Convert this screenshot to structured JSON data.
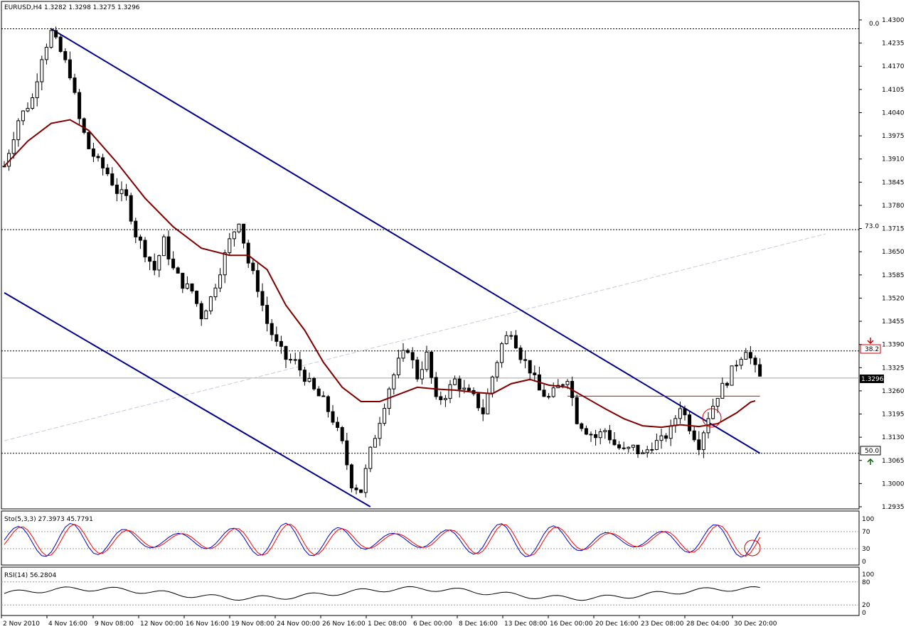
{
  "symbol_header": "EURUSD,H4  1.3282 1.3298 1.3275 1.3296",
  "stochastic_header": "Sto(5,3,3) 27.3973 45.7791",
  "rsi_header": "RSI(14) 56.2804",
  "last_price_label": "1.3296",
  "fib_labels": {
    "fib0": "0.0",
    "fib382": "38.2",
    "fib50": "50.0",
    "fib73": "73.0"
  },
  "colors": {
    "candles": "#000000",
    "ma": "#800000",
    "channel": "#00008b",
    "horizontal_red": "#e00000",
    "stoch_main": "#0000cc",
    "stoch_signal": "#ff0000",
    "rsi": "#000000",
    "background": "#ffffff"
  },
  "icons": {
    "down_arrow": "red-down-arrow-icon",
    "up_arrow": "green-up-arrow-icon"
  },
  "chart_data": [
    {
      "type": "candlestick",
      "title": "EURUSD,H4",
      "ohlc_last": {
        "open": 1.3282,
        "high": 1.3298,
        "low": 1.3275,
        "close": 1.3296
      },
      "ylim": [
        1.2935,
        1.43
      ],
      "y_ticks": [
        "1.4300",
        "1.4235",
        "1.4170",
        "1.4105",
        "1.4040",
        "1.3975",
        "1.3910",
        "1.3845",
        "1.3780",
        "1.3715",
        "1.3650",
        "1.3585",
        "1.3520",
        "1.3455",
        "1.3390",
        "1.3325",
        "1.3260",
        "1.3195",
        "1.3130",
        "1.3065",
        "1.3000",
        "1.2935"
      ],
      "x_ticks": [
        "2 Nov 2010",
        "4 Nov 16:00",
        "9 Nov 08:00",
        "12 Nov 00:00",
        "16 Nov 16:00",
        "19 Nov 08:00",
        "24 Nov 00:00",
        "26 Nov 16:00",
        "1 Dec 08:00",
        "6 Dec 00:00",
        "8 Dec 16:00",
        "13 Dec 08:00",
        "16 Dec 00:00",
        "20 Dec 16:00",
        "23 Dec 08:00",
        "28 Dec 04:00",
        "30 Dec 20:00"
      ],
      "approx_close_path": [
        [
          0,
          1.389
        ],
        [
          3,
          1.402
        ],
        [
          6,
          1.408
        ],
        [
          8,
          1.42
        ],
        [
          10,
          1.4265
        ],
        [
          12,
          1.421
        ],
        [
          14,
          1.415
        ],
        [
          16,
          1.402
        ],
        [
          18,
          1.394
        ],
        [
          20,
          1.39
        ],
        [
          22,
          1.387
        ],
        [
          24,
          1.382
        ],
        [
          26,
          1.38
        ],
        [
          28,
          1.37
        ],
        [
          30,
          1.365
        ],
        [
          32,
          1.36
        ],
        [
          34,
          1.368
        ],
        [
          36,
          1.36
        ],
        [
          38,
          1.356
        ],
        [
          40,
          1.354
        ],
        [
          42,
          1.347
        ],
        [
          44,
          1.352
        ],
        [
          46,
          1.36
        ],
        [
          48,
          1.368
        ],
        [
          50,
          1.374
        ],
        [
          52,
          1.362
        ],
        [
          54,
          1.355
        ],
        [
          56,
          1.345
        ],
        [
          58,
          1.339
        ],
        [
          60,
          1.335
        ],
        [
          62,
          1.334
        ],
        [
          64,
          1.33
        ],
        [
          66,
          1.326
        ],
        [
          68,
          1.323
        ],
        [
          70,
          1.318
        ],
        [
          72,
          1.311
        ],
        [
          74,
          1.3
        ],
        [
          76,
          1.298
        ],
        [
          78,
          1.309
        ],
        [
          80,
          1.318
        ],
        [
          82,
          1.327
        ],
        [
          84,
          1.334
        ],
        [
          86,
          1.338
        ],
        [
          88,
          1.33
        ],
        [
          90,
          1.336
        ],
        [
          92,
          1.323
        ],
        [
          94,
          1.325
        ],
        [
          96,
          1.329
        ],
        [
          98,
          1.326
        ],
        [
          100,
          1.324
        ],
        [
          102,
          1.32
        ],
        [
          104,
          1.33
        ],
        [
          106,
          1.339
        ],
        [
          108,
          1.343
        ],
        [
          110,
          1.336
        ],
        [
          112,
          1.332
        ],
        [
          114,
          1.326
        ],
        [
          116,
          1.324
        ],
        [
          118,
          1.327
        ],
        [
          120,
          1.33
        ],
        [
          122,
          1.318
        ],
        [
          124,
          1.315
        ],
        [
          126,
          1.313
        ],
        [
          128,
          1.315
        ],
        [
          130,
          1.311
        ],
        [
          132,
          1.309
        ],
        [
          134,
          1.31
        ],
        [
          136,
          1.308
        ],
        [
          138,
          1.311
        ],
        [
          140,
          1.312
        ],
        [
          142,
          1.315
        ],
        [
          144,
          1.322
        ],
        [
          146,
          1.316
        ],
        [
          148,
          1.311
        ],
        [
          150,
          1.319
        ],
        [
          152,
          1.325
        ],
        [
          154,
          1.329
        ],
        [
          156,
          1.334
        ],
        [
          158,
          1.338
        ],
        [
          160,
          1.332
        ],
        [
          161,
          1.3296
        ]
      ],
      "moving_average_path": [
        [
          0,
          1.389
        ],
        [
          5,
          1.396
        ],
        [
          10,
          1.401
        ],
        [
          14,
          1.402
        ],
        [
          18,
          1.399
        ],
        [
          24,
          1.39
        ],
        [
          30,
          1.38
        ],
        [
          36,
          1.372
        ],
        [
          42,
          1.366
        ],
        [
          48,
          1.364
        ],
        [
          52,
          1.364
        ],
        [
          56,
          1.36
        ],
        [
          60,
          1.35
        ],
        [
          64,
          1.343
        ],
        [
          68,
          1.334
        ],
        [
          72,
          1.327
        ],
        [
          76,
          1.323
        ],
        [
          80,
          1.323
        ],
        [
          84,
          1.325
        ],
        [
          88,
          1.327
        ],
        [
          92,
          1.3265
        ],
        [
          96,
          1.3262
        ],
        [
          100,
          1.3256
        ],
        [
          104,
          1.3252
        ],
        [
          108,
          1.328
        ],
        [
          112,
          1.3292
        ],
        [
          116,
          1.3276
        ],
        [
          120,
          1.327
        ],
        [
          124,
          1.324
        ],
        [
          128,
          1.321
        ],
        [
          132,
          1.3182
        ],
        [
          136,
          1.3162
        ],
        [
          140,
          1.3158
        ],
        [
          144,
          1.3165
        ],
        [
          148,
          1.316
        ],
        [
          152,
          1.3168
        ],
        [
          156,
          1.3198
        ],
        [
          159,
          1.3228
        ],
        [
          160,
          1.3232
        ]
      ],
      "fibonacci_levels": {
        "0.0": 1.4275,
        "38.2": 1.3372,
        "50.0": 1.3085,
        "73.0": 1.3712
      },
      "channel_upper": [
        [
          10,
          1.4275
        ],
        [
          161,
          1.3085
        ]
      ],
      "channel_lower": [
        [
          0,
          1.3535
        ],
        [
          78,
          1.2935
        ]
      ],
      "fan_line": [
        [
          0,
          1.312
        ],
        [
          175,
          1.37
        ]
      ],
      "red_line_level": 1.3245,
      "red_line_range": [
        120,
        161
      ]
    },
    {
      "type": "line",
      "title": "Sto(5,3,3)",
      "values_last": {
        "main": 27.3973,
        "signal": 45.7791
      },
      "ylim": [
        0,
        100
      ],
      "y_ticks": [
        "100",
        "70",
        "30",
        "0"
      ],
      "levels": [
        70,
        30
      ]
    },
    {
      "type": "line",
      "title": "RSI(14)",
      "value_last": 56.2804,
      "ylim": [
        0,
        100
      ],
      "y_ticks": [
        "100",
        "80",
        "20",
        "0"
      ],
      "levels": [
        80,
        20
      ]
    }
  ]
}
